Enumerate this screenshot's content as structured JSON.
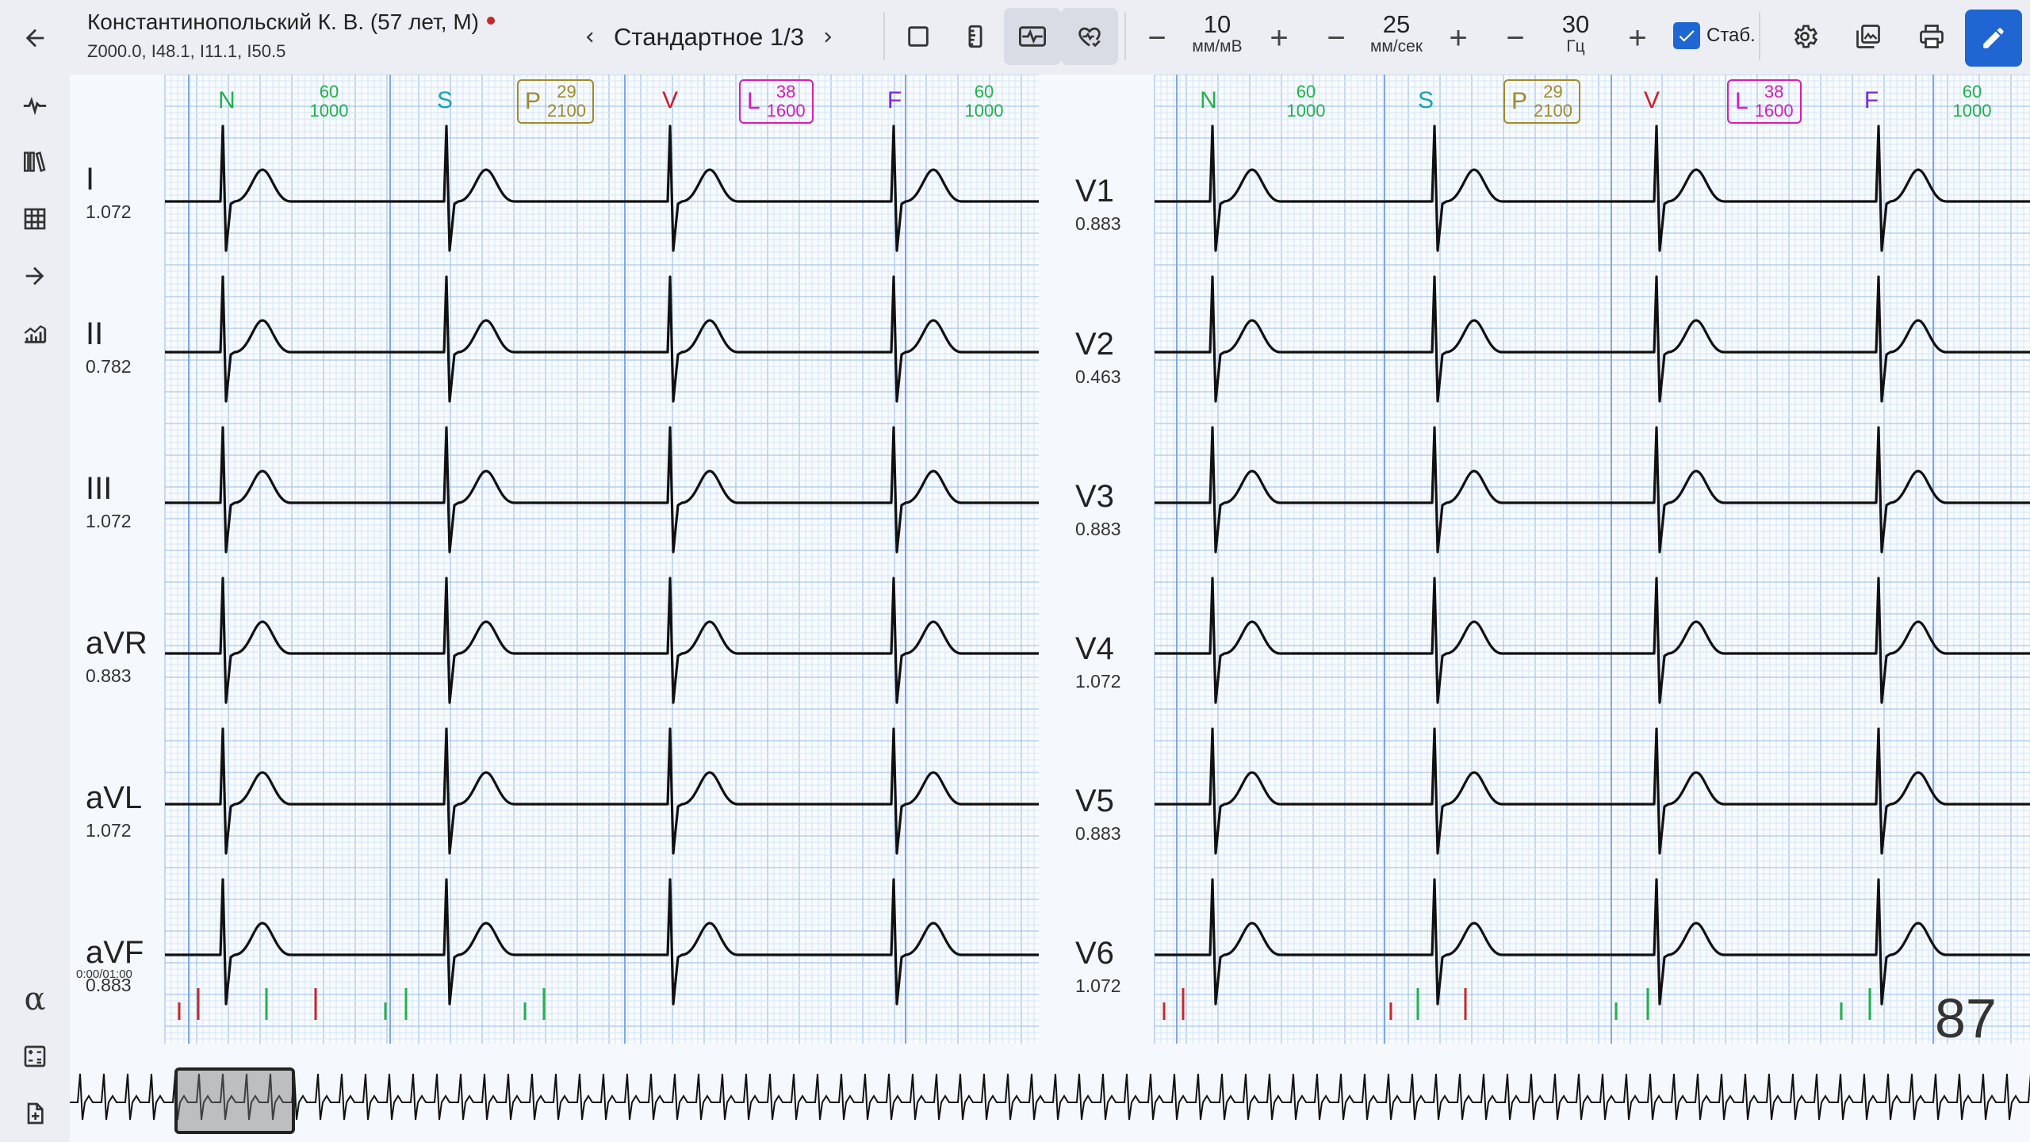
{
  "header": {
    "patient_name": "Константинопольский К. В. (57 лет, М)",
    "diagnosis_codes": "Z000.0, I48.1, I11.1, I50.5",
    "mode_label": "Стандартное 1/3",
    "amplitude": {
      "value": "10",
      "unit": "мм/мВ"
    },
    "speed": {
      "value": "25",
      "unit": "мм/сек"
    },
    "filter": {
      "value": "30",
      "unit": "Гц"
    },
    "stab_label": "Стаб.",
    "stab_checked": true
  },
  "icons": {
    "back": "arrow-left-icon",
    "prev": "chevron-left-icon",
    "next": "chevron-right-icon",
    "tools": [
      "square-icon",
      "ruler-icon",
      "waveform-view-icon",
      "heart-check-icon",
      "settings-icon",
      "image-export-icon",
      "print-icon",
      "pencil-icon"
    ],
    "sidebar": [
      "pulse-icon",
      "library-icon",
      "grid-table-icon",
      "arrow-right-icon",
      "chart-icon",
      "alpha-icon",
      "calculator-icon",
      "file-add-icon"
    ]
  },
  "colors": {
    "accent": "#1f66d3",
    "N": "#22b14c",
    "S": "#1aa3b8",
    "P": "#a08a2a",
    "V": "#d11a2a",
    "L": "#d81bb4",
    "F": "#7b2ad1"
  },
  "markers": {
    "N": {
      "label": "N"
    },
    "rr1": {
      "top": "60",
      "bottom": "1000"
    },
    "S": {
      "label": "S"
    },
    "P": {
      "label": "P",
      "top": "29",
      "bottom": "2100"
    },
    "V": {
      "label": "V"
    },
    "L": {
      "label": "L",
      "top": "38",
      "bottom": "1600"
    },
    "F": {
      "label": "F"
    },
    "rr2": {
      "top": "60",
      "bottom": "1000"
    }
  },
  "leads_left": [
    {
      "name": "I",
      "value": "1.072"
    },
    {
      "name": "II",
      "value": "0.782"
    },
    {
      "name": "III",
      "value": "1.072"
    },
    {
      "name": "aVR",
      "value": "0.883"
    },
    {
      "name": "aVL",
      "value": "1.072"
    },
    {
      "name": "aVF",
      "value": "0.883"
    }
  ],
  "leads_right": [
    {
      "name": "V1",
      "value": "0.883"
    },
    {
      "name": "V2",
      "value": "0.463"
    },
    {
      "name": "V3",
      "value": "0.883"
    },
    {
      "name": "V4",
      "value": "1.072"
    },
    {
      "name": "V5",
      "value": "0.883"
    },
    {
      "name": "V6",
      "value": "1.072"
    }
  ],
  "time_position": "0:00/01:00",
  "heart_rate": "87"
}
